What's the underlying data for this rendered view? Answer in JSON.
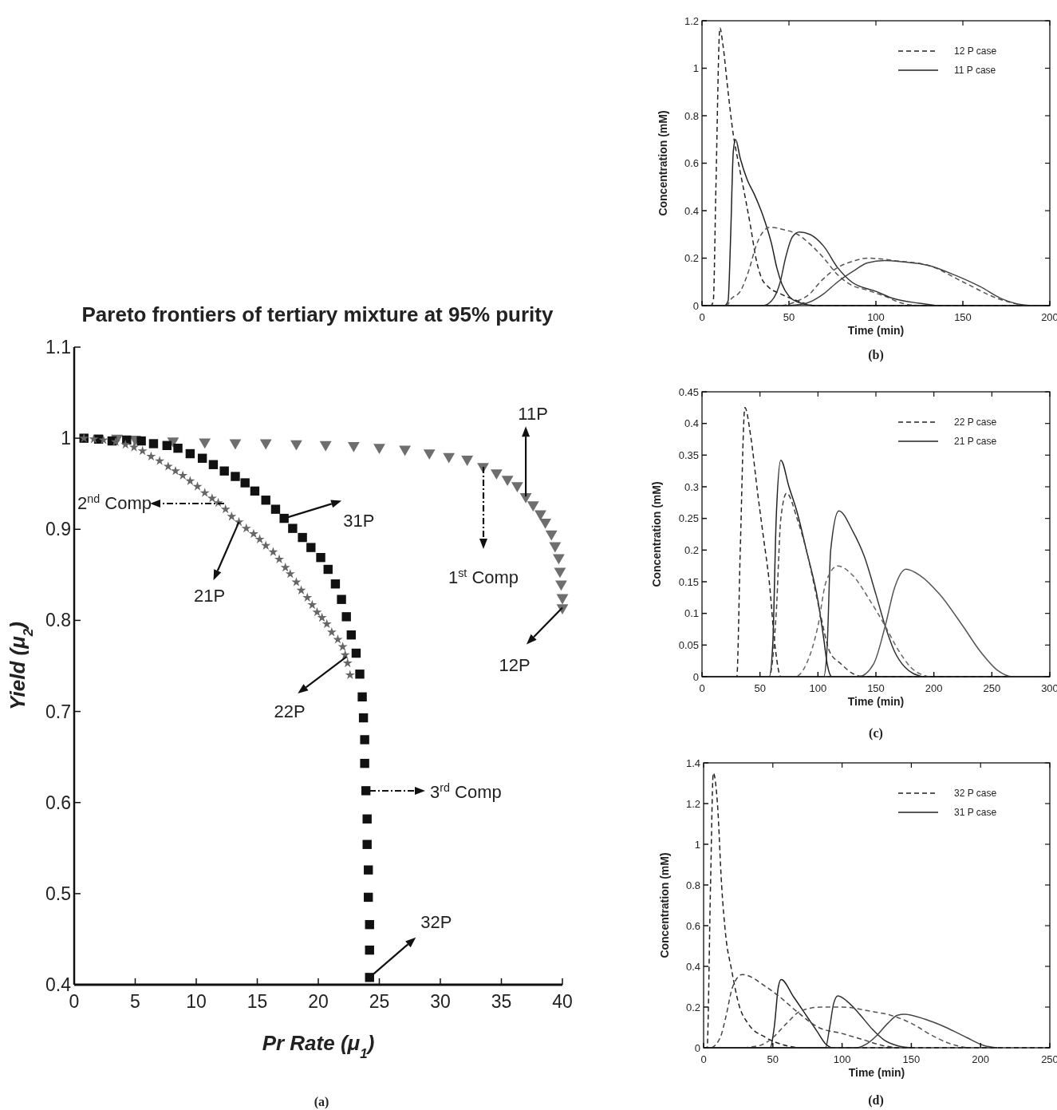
{
  "chart_data": [
    {
      "type": "scatter",
      "title": "Pareto frontiers of tertiary mixture at 95% purity",
      "xlabel": "Pr Rate (μ$_{1}$)",
      "ylabel": "Yield (μ$_{2}$)",
      "xlim": [
        0,
        40
      ],
      "ylim": [
        0.4,
        1.1
      ],
      "xticks": [
        0,
        5,
        10,
        15,
        20,
        25,
        30,
        35,
        40
      ],
      "yticks": [
        0.4,
        0.5,
        0.6,
        0.7,
        0.8,
        0.9,
        1,
        1.1
      ],
      "series": [
        {
          "marker": "triangle",
          "color": "#6e6e6e",
          "x": [
            3.5,
            5,
            8.1,
            10.7,
            13.2,
            15.7,
            18.2,
            20.6,
            22.9,
            25.0,
            27.1,
            29.1,
            30.7,
            32.2,
            33.5,
            34.6,
            35.5,
            36.3,
            37.0,
            37.6,
            38.2,
            38.6,
            39.1,
            39.4,
            39.7,
            39.8,
            39.9,
            40.0,
            40.0
          ],
          "values": [
            1.0,
            0.999,
            0.997,
            0.996,
            0.995,
            0.995,
            0.994,
            0.993,
            0.992,
            0.99,
            0.988,
            0.984,
            0.98,
            0.977,
            0.969,
            0.962,
            0.955,
            0.948,
            0.936,
            0.927,
            0.917,
            0.908,
            0.895,
            0.882,
            0.869,
            0.854,
            0.84,
            0.825,
            0.814
          ]
        },
        {
          "marker": "square",
          "color": "#111111",
          "x": [
            0.8,
            2.0,
            3.1,
            4.3,
            5.5,
            6.5,
            7.6,
            8.5,
            9.5,
            10.5,
            11.4,
            12.3,
            13.2,
            14.0,
            14.8,
            15.7,
            16.5,
            17.2,
            17.9,
            18.7,
            19.4,
            20.2,
            20.8,
            21.4,
            21.9,
            22.3,
            22.7,
            23.1,
            23.4,
            23.6,
            23.7,
            23.8,
            23.8,
            23.9,
            24.0,
            24.0,
            24.1,
            24.1,
            24.2,
            24.2,
            24.2
          ],
          "values": [
            1.0,
            0.999,
            0.997,
            0.998,
            0.997,
            0.994,
            0.992,
            0.989,
            0.983,
            0.978,
            0.971,
            0.964,
            0.958,
            0.951,
            0.942,
            0.932,
            0.922,
            0.912,
            0.901,
            0.891,
            0.88,
            0.869,
            0.856,
            0.84,
            0.823,
            0.804,
            0.784,
            0.764,
            0.741,
            0.716,
            0.693,
            0.669,
            0.643,
            0.613,
            0.582,
            0.554,
            0.526,
            0.496,
            0.466,
            0.438,
            0.408
          ]
        },
        {
          "marker": "star",
          "color": "#666666",
          "x": [
            0.8,
            1.6,
            2.4,
            3.4,
            4.2,
            4.9,
            5.6,
            6.3,
            7.0,
            7.7,
            8.3,
            8.9,
            9.5,
            10.1,
            10.7,
            11.3,
            11.8,
            12.4,
            12.9,
            13.5,
            14.1,
            14.7,
            15.2,
            15.7,
            16.3,
            16.8,
            17.3,
            17.7,
            18.2,
            18.6,
            19.1,
            19.5,
            19.9,
            20.3,
            20.7,
            21.1,
            21.6,
            22.0,
            22.2,
            22.4,
            22.6
          ],
          "values": [
            1.0,
            0.999,
            0.998,
            0.996,
            0.993,
            0.99,
            0.986,
            0.98,
            0.975,
            0.969,
            0.964,
            0.959,
            0.953,
            0.947,
            0.94,
            0.934,
            0.929,
            0.922,
            0.914,
            0.908,
            0.901,
            0.895,
            0.889,
            0.882,
            0.875,
            0.867,
            0.858,
            0.851,
            0.842,
            0.833,
            0.825,
            0.817,
            0.809,
            0.803,
            0.796,
            0.787,
            0.779,
            0.771,
            0.762,
            0.753,
            0.74
          ]
        }
      ],
      "annotations": [
        "2$^{nd}$ Comp",
        {
          "text": "31P",
          "x": 17.2,
          "y": 0.912
        },
        {
          "text": "21P",
          "x": 13.5,
          "y": 0.908
        },
        {
          "text": "22P",
          "x": 22.3,
          "y": 0.76
        },
        "1$^{st}$ Comp",
        {
          "text": "11P",
          "x": 37.0,
          "y": 0.936
        },
        {
          "text": "12P",
          "x": 40.0,
          "y": 0.814
        },
        "3$^{rd}$ Comp",
        {
          "text": "32P",
          "x": 24.2,
          "y": 0.408
        },
        "(a)"
      ]
    },
    {
      "type": "line",
      "xlabel": "Time (min)",
      "ylabel": "Concentration (mM)",
      "xlim": [
        0,
        200
      ],
      "ylim": [
        0,
        1.2
      ],
      "xticks": [
        0,
        50,
        100,
        150,
        200
      ],
      "yticks": [
        0,
        0.2,
        0.4,
        0.6,
        0.8,
        1,
        1.2
      ],
      "legend": "top right",
      "series": [
        {
          "name": "12 P  case",
          "line_style": "dashed",
          "color": "#222222",
          "x": [
            0,
            5,
            6.5,
            8,
            10.3,
            12,
            15,
            18,
            21,
            25,
            28,
            31,
            34,
            38,
            45,
            55,
            65,
            200
          ],
          "values": [
            0,
            0,
            0.02,
            0.5,
            1.17,
            1.1,
            0.9,
            0.72,
            0.6,
            0.45,
            0.33,
            0.2,
            0.12,
            0.08,
            0.05,
            0.02,
            0,
            0
          ]
        },
        {
          "name": "11 P  case",
          "line_style": "solid",
          "color": "#222222",
          "x": [
            0,
            13,
            15,
            16.5,
            18,
            19.3,
            22,
            26,
            30,
            35,
            40,
            43,
            46,
            50,
            55,
            65,
            200
          ],
          "values": [
            0,
            0,
            0.02,
            0.3,
            0.65,
            0.7,
            0.62,
            0.53,
            0.47,
            0.38,
            0.26,
            0.16,
            0.09,
            0.04,
            0.015,
            0,
            0
          ]
        },
        {
          "line_style": "dashed",
          "color": "#555555",
          "x": [
            0,
            14,
            17,
            22,
            27,
            31,
            35,
            39,
            47,
            55,
            62,
            70,
            78,
            85,
            95,
            105,
            115,
            125
          ],
          "values": [
            0,
            0,
            0.03,
            0.06,
            0.15,
            0.25,
            0.31,
            0.33,
            0.32,
            0.3,
            0.26,
            0.2,
            0.13,
            0.09,
            0.065,
            0.04,
            0.01,
            0
          ]
        },
        {
          "line_style": "solid",
          "color": "#333333",
          "x": [
            0,
            35,
            40,
            45,
            48,
            52,
            56,
            62,
            70,
            78,
            86,
            100,
            110,
            125,
            135
          ],
          "values": [
            0,
            0,
            0.02,
            0.1,
            0.2,
            0.29,
            0.31,
            0.3,
            0.25,
            0.16,
            0.1,
            0.06,
            0.03,
            0.01,
            0
          ]
        },
        {
          "line_style": "dashed",
          "color": "#555555",
          "x": [
            0,
            45,
            55,
            62,
            68,
            78,
            88,
            95,
            105,
            110,
            130,
            150,
            170,
            185
          ],
          "values": [
            0,
            0,
            0.02,
            0.05,
            0.1,
            0.16,
            0.19,
            0.2,
            0.195,
            0.19,
            0.17,
            0.1,
            0.03,
            0
          ]
        },
        {
          "line_style": "solid",
          "color": "#444444",
          "x": [
            0,
            50,
            60,
            70,
            78,
            88,
            95,
            105,
            115,
            130,
            145,
            160,
            172,
            183,
            190,
            200
          ],
          "values": [
            0,
            0,
            0.01,
            0.05,
            0.1,
            0.15,
            0.18,
            0.19,
            0.185,
            0.17,
            0.13,
            0.08,
            0.03,
            0.005,
            0,
            0
          ]
        }
      ],
      "annotations": [
        "(b)"
      ]
    },
    {
      "type": "line",
      "xlabel": "Time (min)",
      "ylabel": "Concentration (mM)",
      "xlim": [
        0,
        300
      ],
      "ylim": [
        0,
        0.45
      ],
      "xticks": [
        0,
        50,
        100,
        150,
        200,
        250,
        300
      ],
      "yticks": [
        0,
        0.05,
        0.1,
        0.15,
        0.2,
        0.25,
        0.3,
        0.35,
        0.4,
        0.45
      ],
      "legend": "top right",
      "series": [
        {
          "name": "22 P  case",
          "line_style": "dashed",
          "color": "#222222",
          "x": [
            0,
            30,
            33,
            37,
            42,
            48,
            53,
            58,
            63,
            68,
            300
          ],
          "values": [
            0,
            0,
            0.2,
            0.425,
            0.38,
            0.29,
            0.22,
            0.15,
            0.048,
            0,
            0
          ]
        },
        {
          "name": "21 P  case",
          "line_style": "solid",
          "color": "#222222",
          "x": [
            0,
            58,
            61,
            64,
            68,
            75,
            82,
            90,
            100,
            105,
            108,
            112,
            300
          ],
          "values": [
            0,
            0,
            0.05,
            0.25,
            0.342,
            0.3,
            0.26,
            0.2,
            0.12,
            0.06,
            0.02,
            0,
            0
          ]
        },
        {
          "line_style": "dashed",
          "color": "#444444",
          "x": [
            0,
            58,
            64,
            68,
            73,
            82,
            90,
            102,
            110,
            120,
            130,
            140
          ],
          "values": [
            0,
            0,
            0.1,
            0.25,
            0.29,
            0.25,
            0.2,
            0.1,
            0.04,
            0.02,
            0.005,
            0
          ]
        },
        {
          "line_style": "solid",
          "color": "#333333",
          "x": [
            0,
            105,
            108,
            111,
            118,
            130,
            140,
            150,
            158,
            166,
            175,
            190
          ],
          "values": [
            0,
            0,
            0.05,
            0.2,
            0.262,
            0.23,
            0.19,
            0.13,
            0.08,
            0.04,
            0.015,
            0
          ]
        },
        {
          "line_style": "dashed",
          "color": "#666666",
          "x": [
            0,
            80,
            90,
            100,
            107,
            117,
            130,
            145,
            158,
            170,
            180,
            195
          ],
          "values": [
            0,
            0,
            0.02,
            0.08,
            0.15,
            0.175,
            0.16,
            0.12,
            0.08,
            0.04,
            0.015,
            0
          ]
        },
        {
          "line_style": "solid",
          "color": "#555555",
          "x": [
            0,
            135,
            148,
            158,
            166,
            176,
            188,
            205,
            225,
            240,
            255,
            268,
            300
          ],
          "values": [
            0,
            0,
            0.02,
            0.08,
            0.14,
            0.17,
            0.16,
            0.13,
            0.08,
            0.04,
            0.01,
            0,
            0
          ]
        }
      ],
      "annotations": [
        "(c)"
      ]
    },
    {
      "type": "line",
      "xlabel": "Time (min)",
      "ylabel": "Concentration (mM)",
      "xlim": [
        0,
        250
      ],
      "ylim": [
        0,
        1.4
      ],
      "xticks": [
        0,
        50,
        100,
        150,
        200,
        250
      ],
      "yticks": [
        0,
        0.2,
        0.4,
        0.6,
        0.8,
        1,
        1.2,
        1.4
      ],
      "legend": "top right",
      "series": [
        {
          "name": "32 P  case",
          "line_style": "dashed",
          "color": "#222222",
          "x": [
            0,
            2.5,
            5,
            7,
            10,
            13,
            16,
            20,
            26,
            32,
            45,
            60,
            70,
            250
          ],
          "values": [
            0,
            0,
            0.8,
            1.35,
            1.2,
            0.8,
            0.55,
            0.39,
            0.2,
            0.12,
            0.05,
            0.01,
            0,
            0
          ]
        },
        {
          "name": "31 P  case",
          "line_style": "solid",
          "color": "#222222",
          "x": [
            0,
            48,
            51,
            54,
            56,
            65,
            75,
            82,
            88,
            92
          ],
          "values": [
            0,
            0,
            0.1,
            0.3,
            0.335,
            0.25,
            0.15,
            0.08,
            0.02,
            0
          ]
        },
        {
          "line_style": "dashed",
          "color": "#444444",
          "x": [
            0,
            5,
            12,
            16,
            21,
            28,
            45,
            55,
            67,
            83,
            100,
            115,
            130,
            140
          ],
          "values": [
            0,
            0,
            0.05,
            0.15,
            0.3,
            0.36,
            0.3,
            0.25,
            0.18,
            0.1,
            0.07,
            0.04,
            0.01,
            0
          ]
        },
        {
          "line_style": "solid",
          "color": "#333333",
          "x": [
            0,
            88,
            91,
            94,
            97,
            105,
            112,
            122,
            130,
            140,
            150
          ],
          "values": [
            0,
            0,
            0.1,
            0.22,
            0.255,
            0.22,
            0.17,
            0.09,
            0.04,
            0.01,
            0
          ]
        },
        {
          "line_style": "dashed",
          "color": "#555555",
          "x": [
            0,
            25,
            40,
            50,
            60,
            70,
            85,
            100,
            120,
            135,
            150,
            165,
            178,
            190
          ],
          "values": [
            0,
            0,
            0.01,
            0.05,
            0.12,
            0.18,
            0.2,
            0.2,
            0.18,
            0.16,
            0.12,
            0.06,
            0.02,
            0
          ]
        },
        {
          "line_style": "solid",
          "color": "#444444",
          "x": [
            0,
            110,
            118,
            125,
            133,
            140,
            145,
            160,
            175,
            190,
            203,
            212
          ],
          "values": [
            0,
            0,
            0.02,
            0.06,
            0.12,
            0.16,
            0.165,
            0.14,
            0.1,
            0.05,
            0.01,
            0
          ]
        }
      ],
      "annotations": [
        "(d)"
      ]
    }
  ]
}
